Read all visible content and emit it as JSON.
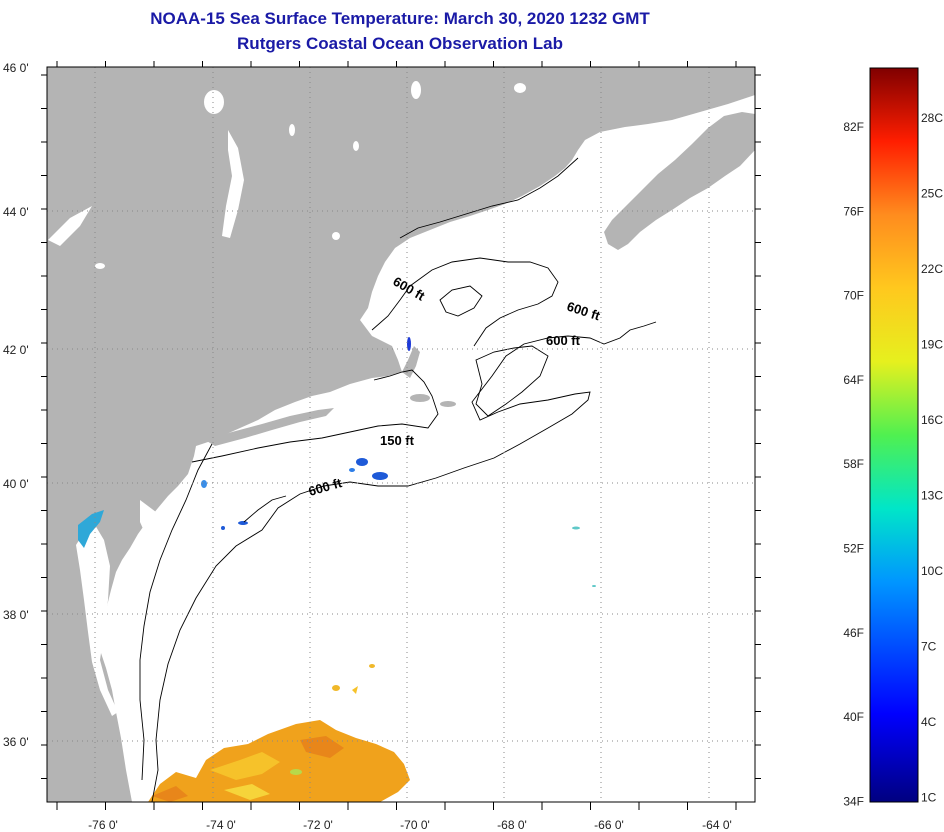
{
  "title": "NOAA-15 Sea Surface Temperature:  March 30, 2020 1232 GMT",
  "subtitle": "Rutgers Coastal Ocean Observation Lab",
  "lon_labels": [
    "-76 0'",
    "-74 0'",
    "-72 0'",
    "-70 0'",
    "-68 0'",
    "-66 0'",
    "-64 0'"
  ],
  "lat_labels": [
    "46 0'",
    "44 0'",
    "42 0'",
    "40 0'",
    "38 0'",
    "36 0'"
  ],
  "contours": [
    "600 ft",
    "600 ft",
    "600 ft",
    "150 ft",
    "600 ft"
  ],
  "colorbar": {
    "fahrenheit": [
      "82F",
      "76F",
      "70F",
      "64F",
      "58F",
      "52F",
      "46F",
      "40F",
      "34F"
    ],
    "celsius": [
      "28C",
      "25C",
      "22C",
      "19C",
      "16C",
      "13C",
      "10C",
      "7C",
      "4C",
      "1C"
    ]
  },
  "colors": {
    "land": "#b4b4b4",
    "title": "#1a1aa6",
    "sst_warm": "#f0a21c",
    "sst_cold": "#1e5ad8"
  }
}
